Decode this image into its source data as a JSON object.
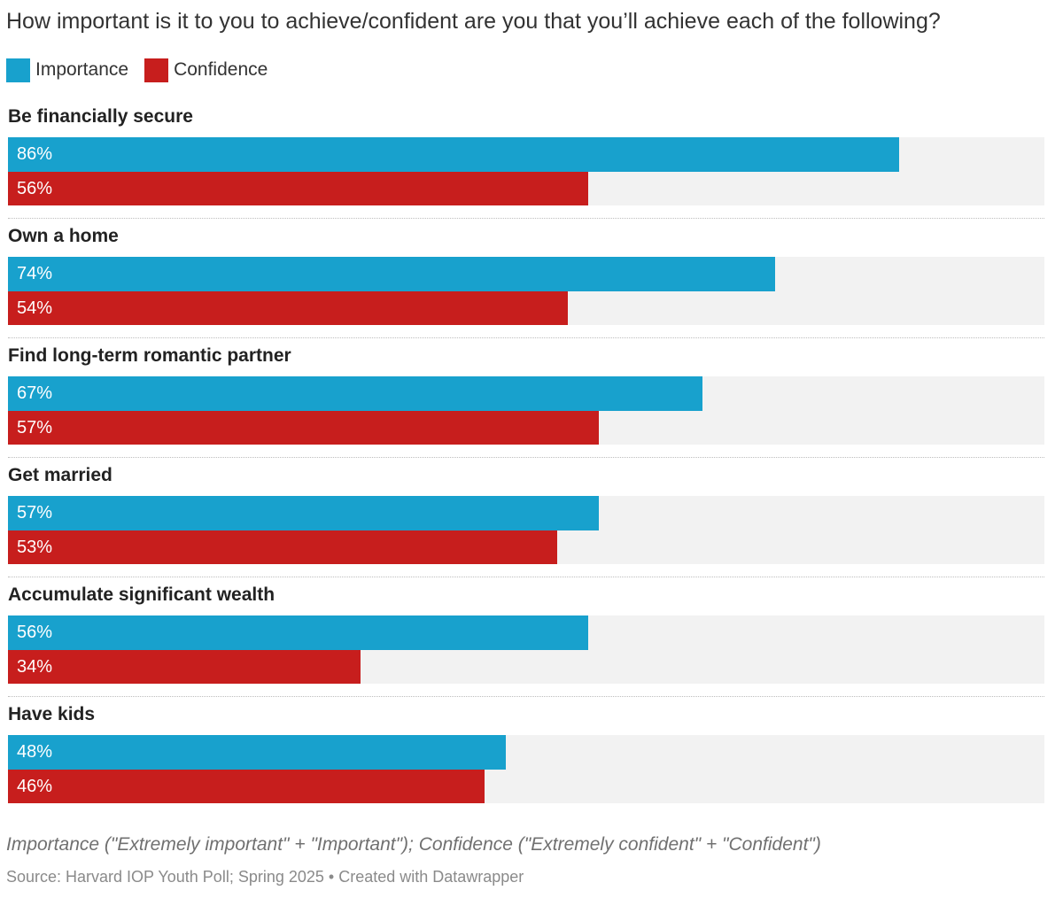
{
  "chart_data": {
    "type": "bar",
    "orientation": "horizontal",
    "title": "How important is it to you to achieve/confident are you that you’ll achieve each of the following?",
    "categories": [
      "Be financially secure",
      "Own a home",
      "Find long-term romantic partner",
      "Get married",
      "Accumulate significant wealth",
      "Have kids"
    ],
    "series": [
      {
        "name": "Importance",
        "color": "#18a1cd",
        "values": [
          86,
          74,
          67,
          57,
          56,
          48
        ]
      },
      {
        "name": "Confidence",
        "color": "#c71e1d",
        "values": [
          56,
          54,
          57,
          53,
          34,
          46
        ]
      }
    ],
    "value_suffix": "%",
    "xlim": [
      0,
      100
    ],
    "legend_position": "top-left",
    "grid": false,
    "note": "Importance (\"Extremely important\" + \"Important\"); Confidence (\"Extremely confident\" + \"Confident\")",
    "source": "Source: Harvard IOP Youth Poll; Spring 2025 • Created with Datawrapper"
  }
}
